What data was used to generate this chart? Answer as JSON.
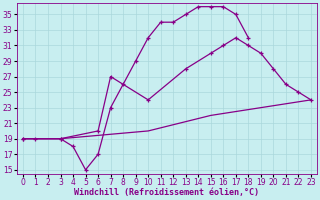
{
  "xlabel": "Windchill (Refroidissement éolien,°C)",
  "bg_color": "#c8eef0",
  "grid_color": "#aad8dc",
  "line_color": "#880088",
  "xlim": [
    -0.5,
    23.5
  ],
  "ylim": [
    14.5,
    36.5
  ],
  "xticks": [
    0,
    1,
    2,
    3,
    4,
    5,
    6,
    7,
    8,
    9,
    10,
    11,
    12,
    13,
    14,
    15,
    16,
    17,
    18,
    19,
    20,
    21,
    22,
    23
  ],
  "yticks": [
    15,
    17,
    19,
    21,
    23,
    25,
    27,
    29,
    31,
    33,
    35
  ],
  "line1_x": [
    0,
    1,
    3,
    4,
    5,
    6,
    7,
    8,
    9,
    10,
    11,
    12,
    13,
    14,
    15,
    16,
    17,
    18
  ],
  "line1_y": [
    19,
    19,
    19,
    18,
    15,
    17,
    23,
    26,
    29,
    32,
    34,
    34,
    35,
    36,
    36,
    36,
    35,
    32
  ],
  "line2_x": [
    0,
    3,
    6,
    7,
    10,
    13,
    15,
    16,
    17,
    18,
    19,
    20,
    21,
    22,
    23
  ],
  "line2_y": [
    19,
    19,
    20,
    27,
    24,
    28,
    30,
    31,
    32,
    31,
    30,
    28,
    26,
    25,
    24
  ],
  "line3_x": [
    0,
    3,
    10,
    15,
    19,
    23
  ],
  "line3_y": [
    19,
    19,
    20,
    22,
    23,
    24
  ],
  "xlabel_fontsize": 6,
  "tick_fontsize": 5.5
}
